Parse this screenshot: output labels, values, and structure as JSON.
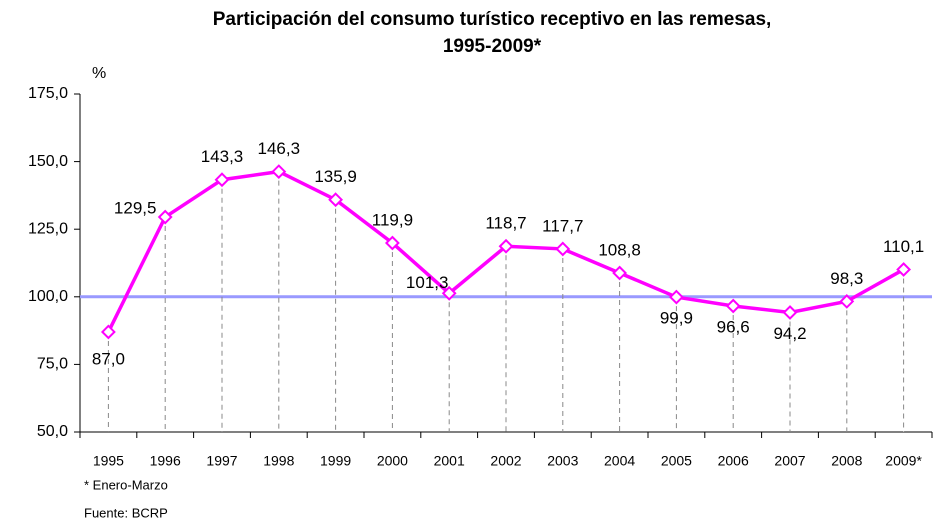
{
  "chart_data": {
    "type": "line",
    "title": "Participación del consumo turístico receptivo en las remesas,",
    "subtitle": "1995-2009*",
    "y_label": "%",
    "categories": [
      "1995",
      "1996",
      "1997",
      "1998",
      "1999",
      "2000",
      "2001",
      "2002",
      "2003",
      "2004",
      "2005",
      "2006",
      "2007",
      "2008",
      "2009*"
    ],
    "series": [
      {
        "name": "Participación",
        "color": "#ff00ff",
        "values": [
          87.0,
          129.5,
          143.3,
          146.3,
          135.9,
          119.9,
          101.3,
          118.7,
          117.7,
          108.8,
          99.9,
          96.6,
          94.2,
          98.3,
          110.1
        ],
        "value_labels": [
          "87,0",
          "129,5",
          "143,3",
          "146,3",
          "135,9",
          "119,9",
          "101,3",
          "118,7",
          "117,7",
          "108,8",
          "99,9",
          "96,6",
          "94,2",
          "98,3",
          "110,1"
        ]
      }
    ],
    "ylim": [
      50,
      175
    ],
    "yticks": [
      {
        "value": 50,
        "label": "50,0"
      },
      {
        "value": 75,
        "label": "75,0"
      },
      {
        "value": 100,
        "label": "100,0"
      },
      {
        "value": 125,
        "label": "125,0"
      },
      {
        "value": 150,
        "label": "150,0"
      },
      {
        "value": 175,
        "label": "175,0"
      }
    ],
    "reference_line": {
      "value": 100,
      "color": "#9999ff"
    },
    "drop_lines": true,
    "grid": false,
    "notes": [
      "* Enero-Marzo",
      "Fuente: BCRP"
    ]
  }
}
